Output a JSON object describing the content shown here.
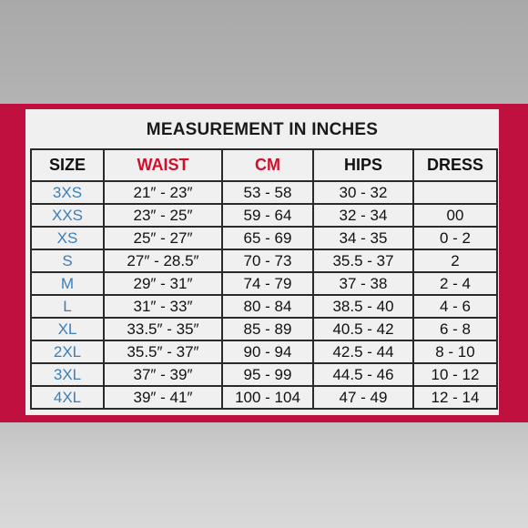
{
  "title": "MEASUREMENT IN INCHES",
  "headers": [
    "SIZE",
    "WAIST",
    "CM",
    "HIPS",
    "DRESS"
  ],
  "colors": {
    "band": "#c0103f",
    "header_accent": "#d00f2c",
    "size_text": "#3a7fb8"
  },
  "rows": [
    [
      "3XS",
      "21″ - 23″",
      "53 - 58",
      "30 - 32",
      ""
    ],
    [
      "XXS",
      "23″ - 25″",
      "59 - 64",
      "32 - 34",
      "00"
    ],
    [
      "XS",
      "25″ - 27″",
      "65 - 69",
      "34 - 35",
      "0 - 2"
    ],
    [
      "S",
      "27″ - 28.5″",
      "70 - 73",
      "35.5 - 37",
      "2"
    ],
    [
      "M",
      "29″ - 31″",
      "74 - 79",
      "37 - 38",
      "2 - 4"
    ],
    [
      "L",
      "31″ - 33″",
      "80 - 84",
      "38.5 - 40",
      "4 - 6"
    ],
    [
      "XL",
      "33.5″ - 35″",
      "85 - 89",
      "40.5 - 42",
      "6 - 8"
    ],
    [
      "2XL",
      "35.5″ - 37″",
      "90 - 94",
      "42.5 - 44",
      "8 - 10"
    ],
    [
      "3XL",
      "37″ - 39″",
      "95 - 99",
      "44.5 - 46",
      "10 - 12"
    ],
    [
      "4XL",
      "39″ - 41″",
      "100 - 104",
      "47 - 49",
      "12 - 14"
    ]
  ]
}
